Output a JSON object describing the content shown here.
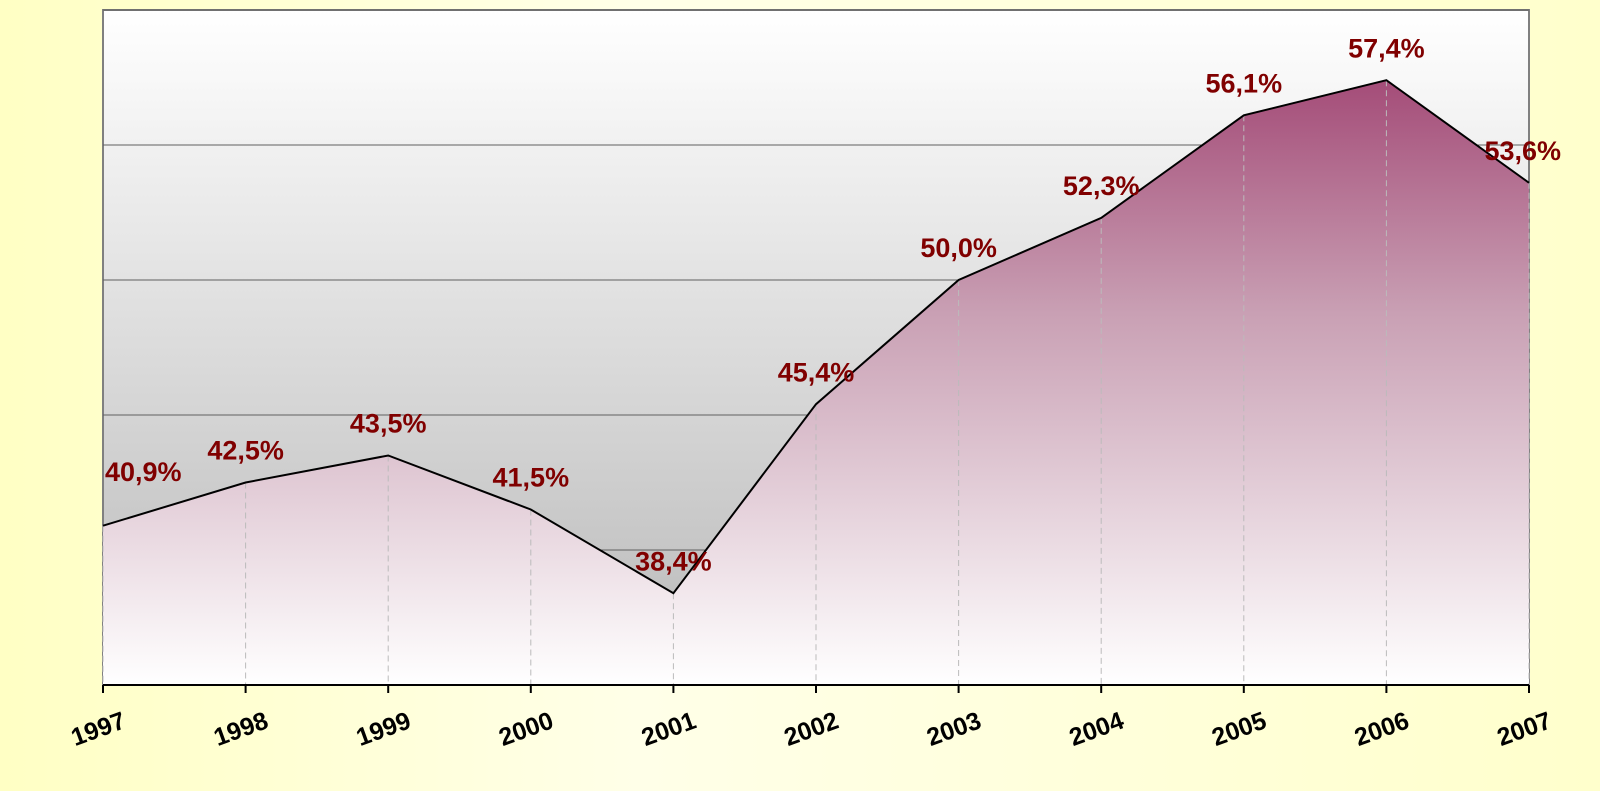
{
  "chart_data": {
    "type": "area",
    "categories": [
      "1997",
      "1998",
      "1999",
      "2000",
      "2001",
      "2002",
      "2003",
      "2004",
      "2005",
      "2006",
      "2007"
    ],
    "values": [
      40.9,
      42.5,
      43.5,
      41.5,
      38.4,
      45.4,
      50.0,
      52.3,
      56.1,
      57.4,
      53.6
    ],
    "value_labels": [
      "40,9%",
      "42,5%",
      "43,5%",
      "41,5%",
      "38,4%",
      "45,4%",
      "50,0%",
      "52,3%",
      "56,1%",
      "57,4%",
      "53,6%"
    ],
    "color": "#993366",
    "ylim": [
      35,
      60
    ],
    "yticks": [
      35,
      40,
      45,
      50,
      55,
      60
    ],
    "grid": true
  }
}
